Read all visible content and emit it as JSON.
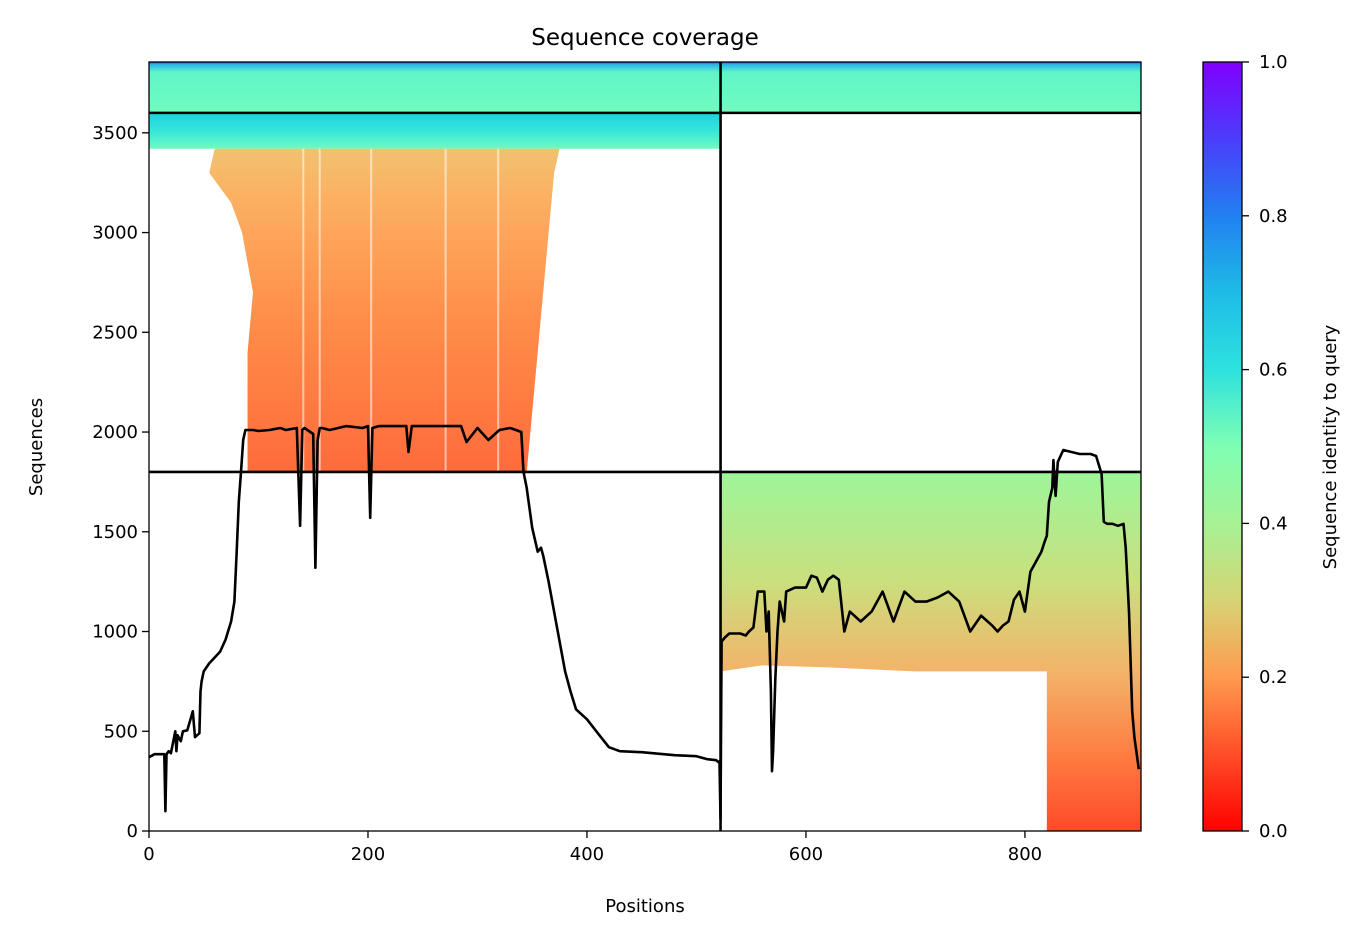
{
  "chart_data": {
    "type": "heatmap",
    "title": "Sequence coverage",
    "xlabel": "Positions",
    "ylabel": "Sequences",
    "xlim": [
      0,
      906
    ],
    "ylim": [
      0,
      3855
    ],
    "x_ticks": [
      0,
      200,
      400,
      600,
      800
    ],
    "y_ticks": [
      0,
      500,
      1000,
      1500,
      2000,
      2500,
      3000,
      3500
    ],
    "colormap": "rainbow",
    "colorbar": {
      "label": "Sequence identity to query",
      "range": [
        0.0,
        1.0
      ],
      "ticks": [
        "0.0",
        "0.2",
        "0.4",
        "0.6",
        "0.8",
        "1.0"
      ]
    },
    "block_boundaries": {
      "x": [
        522
      ],
      "y": [
        1800,
        3600
      ]
    },
    "blocks": [
      {
        "x_range": [
          0,
          522
        ],
        "y_range": [
          3600,
          3855
        ],
        "identity_range": [
          0.47,
          1.0
        ]
      },
      {
        "x_range": [
          522,
          906
        ],
        "y_range": [
          3600,
          3855
        ],
        "identity_range": [
          0.47,
          1.0
        ]
      },
      {
        "x_range": [
          0,
          522
        ],
        "y_range": [
          3420,
          3600
        ],
        "identity_range": [
          0.5,
          0.65
        ]
      },
      {
        "x_range": [
          0,
          522
        ],
        "y_range": [
          1800,
          3420
        ],
        "identity_range": [
          0.18,
          0.28
        ]
      },
      {
        "x_range": [
          522,
          906
        ],
        "y_range": [
          0,
          1800
        ],
        "identity_range": [
          0.07,
          0.45
        ]
      }
    ],
    "series": [
      {
        "name": "",
        "color": "#000000",
        "x": [
          0,
          5,
          10,
          14,
          15,
          16,
          18,
          20,
          24,
          25,
          26,
          29,
          31,
          35,
          40,
          42,
          44,
          46,
          47,
          48,
          50,
          55,
          60,
          65,
          70,
          75,
          78,
          80,
          82,
          84,
          86,
          88,
          90,
          95,
          100,
          110,
          120,
          125,
          135,
          138,
          140,
          142,
          150,
          152,
          154,
          156,
          158,
          165,
          180,
          195,
          200,
          202,
          204,
          210,
          220,
          235,
          237,
          240,
          255,
          275,
          285,
          290,
          300,
          310,
          320,
          330,
          335,
          340,
          342,
          345,
          350,
          355,
          358,
          360,
          365,
          370,
          375,
          380,
          385,
          390,
          400,
          410,
          420,
          430,
          450,
          480,
          500,
          510,
          518,
          520,
          521,
          522,
          523,
          526,
          530,
          535,
          540,
          545,
          548,
          552,
          556,
          560,
          562,
          564,
          566,
          568,
          569,
          570,
          572,
          574,
          576,
          580,
          582,
          590,
          600,
          605,
          610,
          615,
          620,
          625,
          630,
          635,
          640,
          650,
          660,
          670,
          680,
          690,
          700,
          710,
          720,
          730,
          740,
          750,
          760,
          770,
          775,
          780,
          785,
          790,
          795,
          800,
          805,
          810,
          815,
          818,
          820,
          822,
          825,
          826,
          828,
          830,
          835,
          850,
          860,
          865,
          870,
          872,
          875,
          880,
          885,
          890,
          892,
          895,
          898,
          900,
          904
        ],
        "y": [
          370,
          385,
          385,
          385,
          100,
          385,
          400,
          390,
          500,
          400,
          480,
          450,
          500,
          505,
          600,
          470,
          480,
          490,
          700,
          750,
          800,
          840,
          870,
          900,
          960,
          1050,
          1150,
          1390,
          1650,
          1800,
          1960,
          2010,
          2010,
          2010,
          2005,
          2010,
          2020,
          2010,
          2020,
          1530,
          2010,
          2020,
          1990,
          1320,
          1960,
          2020,
          2020,
          2010,
          2030,
          2020,
          2030,
          1570,
          2020,
          2030,
          2030,
          2030,
          1900,
          2030,
          2030,
          2030,
          2030,
          1950,
          2020,
          1960,
          2010,
          2020,
          2010,
          2000,
          1800,
          1720,
          1520,
          1400,
          1420,
          1380,
          1250,
          1100,
          950,
          800,
          700,
          610,
          560,
          490,
          420,
          400,
          395,
          380,
          375,
          360,
          355,
          345,
          350,
          60,
          950,
          970,
          990,
          990,
          990,
          980,
          1000,
          1020,
          1200,
          1200,
          1200,
          1000,
          1100,
          700,
          300,
          400,
          760,
          1000,
          1150,
          1050,
          1200,
          1220,
          1220,
          1280,
          1270,
          1200,
          1260,
          1280,
          1260,
          1000,
          1100,
          1050,
          1100,
          1200,
          1050,
          1200,
          1150,
          1150,
          1170,
          1200,
          1150,
          1000,
          1080,
          1030,
          1000,
          1030,
          1050,
          1160,
          1200,
          1100,
          1300,
          1350,
          1400,
          1450,
          1480,
          1650,
          1720,
          1860,
          1680,
          1850,
          1910,
          1890,
          1890,
          1880,
          1790,
          1550,
          1540,
          1540,
          1530,
          1540,
          1420,
          1100,
          600,
          470,
          310
        ]
      }
    ]
  }
}
